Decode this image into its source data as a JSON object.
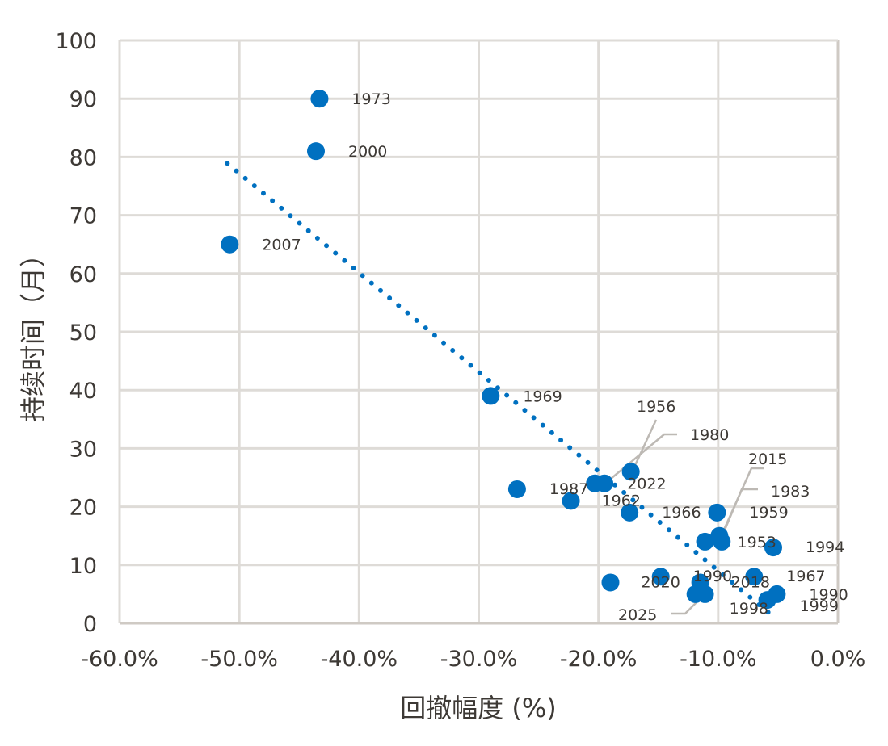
{
  "chart_data": {
    "type": "scatter",
    "xlabel": "回撤幅度 (%)",
    "ylabel": "持续时间（月）",
    "xlim": [
      -60,
      0
    ],
    "ylim": [
      0,
      100
    ],
    "x_ticks": [
      "-60.0%",
      "-50.0%",
      "-40.0%",
      "-30.0%",
      "-20.0%",
      "-10.0%",
      "0.0%"
    ],
    "y_ticks": [
      "0",
      "10",
      "20",
      "30",
      "40",
      "50",
      "60",
      "70",
      "80",
      "90",
      "100"
    ],
    "grid": true,
    "point_color": "#0070C0",
    "trendline": {
      "style": "dotted",
      "type": "linear",
      "color": "#0070C0",
      "x_range": [
        -51,
        -5.8
      ]
    },
    "points": [
      {
        "label": "1973",
        "x": -43.3,
        "y": 90
      },
      {
        "label": "2000",
        "x": -43.6,
        "y": 81
      },
      {
        "label": "2007",
        "x": -50.8,
        "y": 65
      },
      {
        "label": "1969",
        "x": -29.0,
        "y": 39
      },
      {
        "label": "1987",
        "x": -26.8,
        "y": 23
      },
      {
        "label": "1962",
        "x": -22.3,
        "y": 21
      },
      {
        "label": "2022",
        "x": -20.3,
        "y": 24
      },
      {
        "label": "1980",
        "x": -19.5,
        "y": 24
      },
      {
        "label": "1956",
        "x": -17.3,
        "y": 26
      },
      {
        "label": "1966",
        "x": -17.4,
        "y": 19
      },
      {
        "label": "2020",
        "x": -19.0,
        "y": 7
      },
      {
        "label": "1990",
        "x": -14.8,
        "y": 8
      },
      {
        "label": "1959",
        "x": -10.1,
        "y": 19
      },
      {
        "label": "1953",
        "x": -11.1,
        "y": 14
      },
      {
        "label": "2015",
        "x": -9.9,
        "y": 15
      },
      {
        "label": "1983",
        "x": -9.7,
        "y": 14
      },
      {
        "label": "1994",
        "x": -5.4,
        "y": 13
      },
      {
        "label": "2018",
        "x": -11.5,
        "y": 7
      },
      {
        "label": "1967",
        "x": -7.0,
        "y": 8
      },
      {
        "label": "1998",
        "x": -11.9,
        "y": 5
      },
      {
        "label": "2025",
        "x": -11.1,
        "y": 5
      },
      {
        "label": "1990",
        "x": -5.1,
        "y": 5
      },
      {
        "label": "1999",
        "x": -5.9,
        "y": 4
      }
    ]
  }
}
